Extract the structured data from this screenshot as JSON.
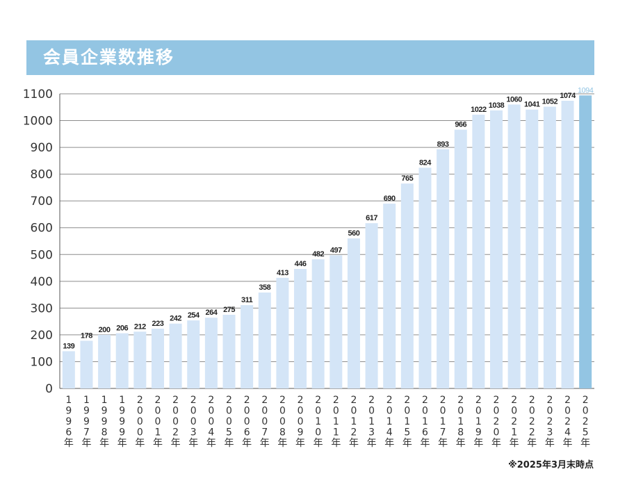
{
  "title": "会員企業数推移",
  "footnote": "※2025年3月末時点",
  "colors": {
    "title_bg": "#93c5e3",
    "bar": "#d4e5f7",
    "highlight_bar": "#93c5e3",
    "highlight_label": "#93c5e3",
    "grid": "#8c8c8c"
  },
  "chart_data": {
    "type": "bar",
    "categories": [
      "1996年",
      "1997年",
      "1998年",
      "1999年",
      "2000年",
      "2001年",
      "2002年",
      "2003年",
      "2004年",
      "2005年",
      "2006年",
      "2007年",
      "2008年",
      "2009年",
      "2010年",
      "2011年",
      "2012年",
      "2013年",
      "2014年",
      "2015年",
      "2016年",
      "2017年",
      "2018年",
      "2019年",
      "2020年",
      "2021年",
      "2022年",
      "2023年",
      "2024年",
      "2025年"
    ],
    "values": [
      139,
      178,
      200,
      206,
      212,
      223,
      242,
      254,
      264,
      275,
      311,
      358,
      413,
      446,
      482,
      497,
      560,
      617,
      690,
      765,
      824,
      893,
      966,
      1022,
      1038,
      1060,
      1041,
      1052,
      1074,
      1094
    ],
    "yticks": [
      0,
      100,
      200,
      300,
      400,
      500,
      600,
      700,
      800,
      900,
      1000,
      1100
    ],
    "ylim": [
      0,
      1100
    ],
    "grid": true,
    "highlight_index": 29
  }
}
